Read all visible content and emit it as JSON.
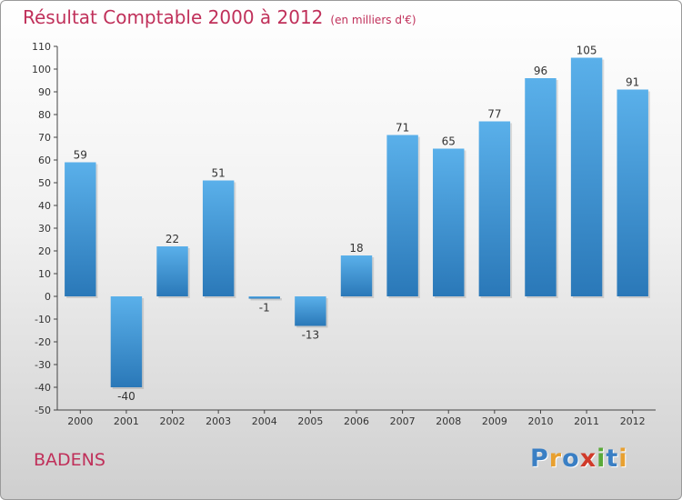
{
  "chart_data": {
    "type": "bar",
    "title": "Résultat Comptable 2000 à 2012",
    "subtitle": "(en milliers d'€)",
    "categories": [
      "2000",
      "2001",
      "2002",
      "2003",
      "2004",
      "2005",
      "2006",
      "2007",
      "2008",
      "2009",
      "2010",
      "2011",
      "2012"
    ],
    "values": [
      59,
      -40,
      22,
      51,
      -1,
      -13,
      18,
      71,
      65,
      77,
      96,
      105,
      91
    ],
    "value_labels": [
      "59",
      "-40",
      "22",
      "51",
      "-1",
      "-13",
      "18",
      "71",
      "65",
      "77",
      "96",
      "105",
      "91"
    ],
    "yticks": [
      110,
      100,
      90,
      80,
      70,
      60,
      50,
      40,
      30,
      20,
      10,
      0,
      -10,
      -20,
      -30,
      -40,
      -50
    ],
    "ylim": [
      -50,
      110
    ],
    "xlabel": "",
    "ylabel": "",
    "grid": false,
    "bar_color_top": "#5ab0ea",
    "bar_color_bottom": "#2a78b8"
  },
  "footer": {
    "commune": "BADENS",
    "logo_letters": [
      "P",
      "r",
      "o",
      "x",
      "i",
      "t",
      "i"
    ],
    "logo_colors": [
      "#3a7fc4",
      "#e8a030",
      "#3a7fc4",
      "#d03a2a",
      "#5aaa3a",
      "#3a7fc4",
      "#e8a030"
    ]
  }
}
